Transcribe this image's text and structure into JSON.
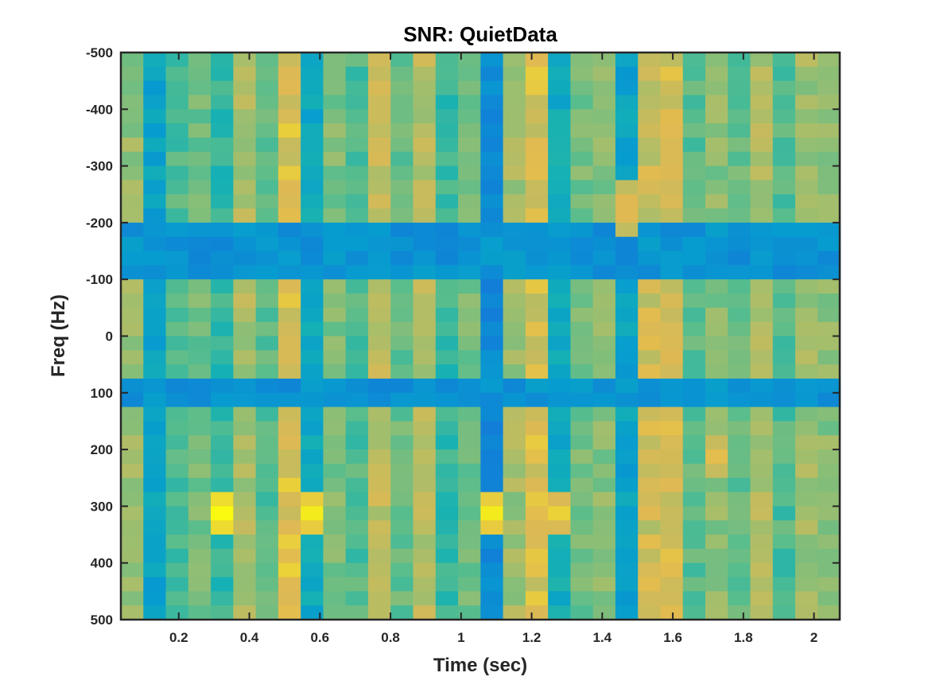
{
  "chart_data": {
    "type": "heatmap",
    "title": "SNR: QuietData",
    "xlabel": "Time (sec)",
    "ylabel": "Freq (Hz)",
    "xlim": [
      0.036,
      2.073
    ],
    "ylim": [
      -500,
      500
    ],
    "y_direction": "reversed",
    "x_ticks": [
      0.2,
      0.4,
      0.6,
      0.8,
      1,
      1.2,
      1.4,
      1.6,
      1.8,
      2
    ],
    "x_tick_labels": [
      "0.2",
      "0.4",
      "0.6",
      "0.8",
      "1",
      "1.2",
      "1.4",
      "1.6",
      "1.8",
      "2"
    ],
    "y_ticks": [
      -500,
      -400,
      -300,
      -200,
      -100,
      0,
      100,
      200,
      300,
      400,
      500
    ],
    "y_tick_labels": [
      "-500",
      "-400",
      "-300",
      "-200",
      "-100",
      "0",
      "100",
      "200",
      "300",
      "400",
      "500"
    ],
    "colormap": "parula",
    "n_time_bins": 32,
    "n_freq_bins": 40,
    "time_start": 0.036,
    "time_step": 0.0637,
    "freq_start": -500,
    "freq_step": 25,
    "column_base": [
      0.72,
      0.42,
      0.6,
      0.66,
      0.55,
      0.76,
      0.62,
      0.86,
      0.45,
      0.68,
      0.6,
      0.8,
      0.64,
      0.78,
      0.56,
      0.66,
      0.3,
      0.74,
      0.85,
      0.46,
      0.66,
      0.7,
      0.42,
      0.82,
      0.84,
      0.62,
      0.7,
      0.64,
      0.76,
      0.6,
      0.74,
      0.7
    ],
    "dip_bands_hz": [
      [
        -200,
        -100
      ],
      [
        75,
        125
      ]
    ],
    "hotspots": [
      {
        "time": 0.32,
        "freq": 312,
        "value": 1.0
      },
      {
        "time": 0.58,
        "freq": 312,
        "value": 0.97
      },
      {
        "time": 1.09,
        "freq": 312,
        "value": 0.97
      },
      {
        "time": 1.29,
        "freq": 312,
        "value": 0.92
      },
      {
        "time": 1.48,
        "freq": -225,
        "value": 0.9
      },
      {
        "time": 1.73,
        "freq": 212,
        "value": 0.88
      }
    ],
    "grid": false,
    "legend": "none"
  }
}
